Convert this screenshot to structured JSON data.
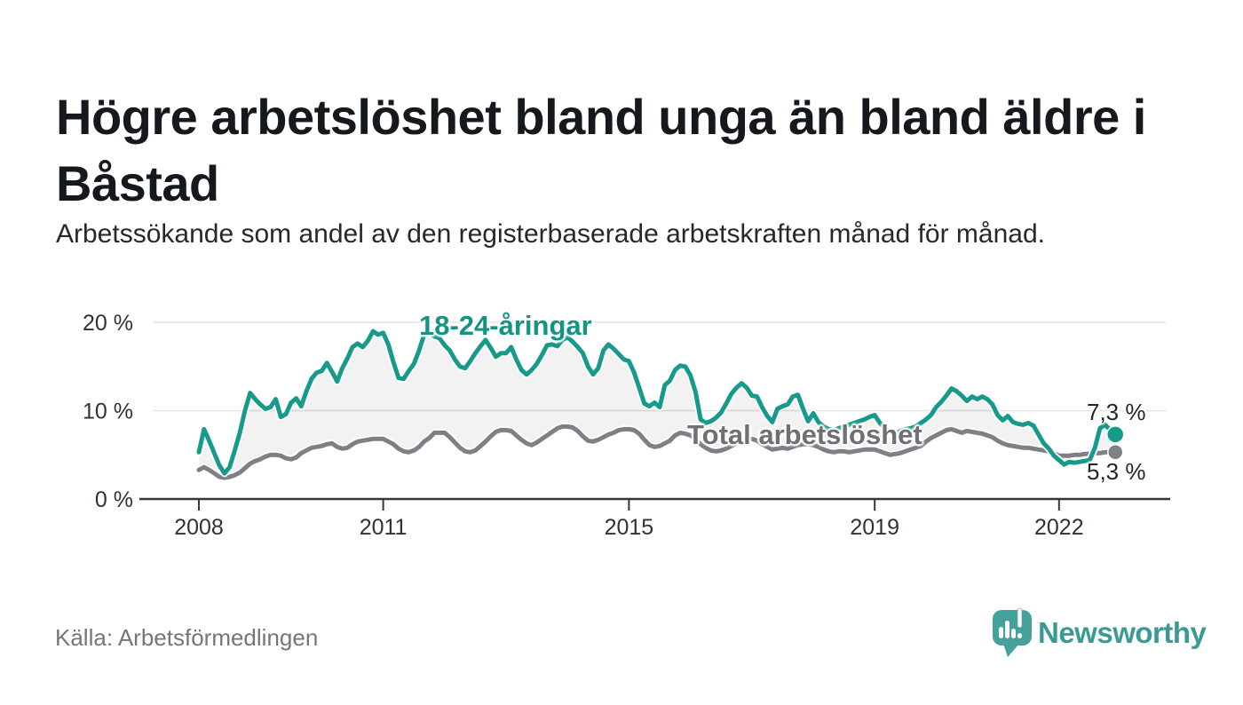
{
  "header": {
    "title": "Högre arbetslöshet bland unga än bland äldre i Båstad",
    "subtitle": "Arbetssökande som andel av den registerbaserade arbetskraften månad för månad."
  },
  "chart_data": {
    "type": "line",
    "title": "Högre arbetslöshet bland unga än bland äldre i Båstad",
    "x_start": {
      "year": 2008,
      "month": 1
    },
    "x_frequency": "monthly",
    "months": 180,
    "ylim": [
      0,
      21.5
    ],
    "grid": "horizontal",
    "legend": "inline-labels",
    "y_axis": {
      "ticks": [
        {
          "value": 0,
          "label": "0 %"
        },
        {
          "value": 10,
          "label": "10 %"
        },
        {
          "value": 20,
          "label": "20 %"
        }
      ]
    },
    "x_axis": {
      "ticks": [
        {
          "year": 2008,
          "label": "2008"
        },
        {
          "year": 2011,
          "label": "2011"
        },
        {
          "year": 2015,
          "label": "2015"
        },
        {
          "year": 2019,
          "label": "2019"
        },
        {
          "year": 2022,
          "label": "2022"
        }
      ]
    },
    "series": [
      {
        "name": "18-24-åringar",
        "color": "#179a89",
        "end_label": "7,3 %",
        "end_value": 7.3,
        "values": [
          5.3,
          7.9,
          6.6,
          5.2,
          3.8,
          2.9,
          3.6,
          5.5,
          7.5,
          10.0,
          12.0,
          11.3,
          10.7,
          10.2,
          10.4,
          11.3,
          9.3,
          9.6,
          10.9,
          11.4,
          10.5,
          12.2,
          13.6,
          14.3,
          14.5,
          15.4,
          14.4,
          13.3,
          14.8,
          15.9,
          17.2,
          17.6,
          17.2,
          17.9,
          19.0,
          18.6,
          18.8,
          17.5,
          15.5,
          13.7,
          13.6,
          14.5,
          15.3,
          16.8,
          18.6,
          18.8,
          18.4,
          18.2,
          17.4,
          16.8,
          15.8,
          15.0,
          14.8,
          15.6,
          16.5,
          17.3,
          18.0,
          17.1,
          16.1,
          16.5,
          16.5,
          17.2,
          15.8,
          14.6,
          14.1,
          14.6,
          15.3,
          16.3,
          17.4,
          17.5,
          17.3,
          18.0,
          18.3,
          17.8,
          17.2,
          16.5,
          15.0,
          14.1,
          14.8,
          16.8,
          17.5,
          17.0,
          16.4,
          15.8,
          15.6,
          14.3,
          12.6,
          10.8,
          10.5,
          10.9,
          10.4,
          12.9,
          13.4,
          14.6,
          15.1,
          15.0,
          14.0,
          12.1,
          9.0,
          8.6,
          8.8,
          9.2,
          9.8,
          10.8,
          11.9,
          12.6,
          13.1,
          12.6,
          11.7,
          11.6,
          10.4,
          9.4,
          8.7,
          10.2,
          10.5,
          10.7,
          11.6,
          11.8,
          10.2,
          8.8,
          9.7,
          8.7,
          8.2,
          7.9,
          7.8,
          8.0,
          8.2,
          8.4,
          8.6,
          8.8,
          9.0,
          9.3,
          9.5,
          8.6,
          8.0,
          7.6,
          7.4,
          7.7,
          7.9,
          8.0,
          8.2,
          8.6,
          9.0,
          9.5,
          10.4,
          11.0,
          11.7,
          12.5,
          12.2,
          11.7,
          11.1,
          11.6,
          11.3,
          11.6,
          11.3,
          10.7,
          9.5,
          8.9,
          9.4,
          8.7,
          8.5,
          8.4,
          8.6,
          8.3,
          7.3,
          6.3,
          5.7,
          4.9,
          4.4,
          3.9,
          4.2,
          4.1,
          4.2,
          4.3,
          4.4,
          5.8,
          8.0,
          8.4,
          7.8,
          7.3
        ]
      },
      {
        "name": "Total arbetslöshet",
        "color": "#7f7f86",
        "end_label": "5,3 %",
        "end_value": 5.3,
        "values": [
          3.3,
          3.6,
          3.3,
          2.9,
          2.5,
          2.4,
          2.5,
          2.7,
          3.0,
          3.5,
          4.0,
          4.3,
          4.5,
          4.8,
          5.0,
          5.0,
          4.9,
          4.6,
          4.5,
          4.7,
          5.2,
          5.5,
          5.8,
          5.9,
          6.0,
          6.2,
          6.3,
          5.9,
          5.7,
          5.8,
          6.2,
          6.5,
          6.6,
          6.7,
          6.8,
          6.8,
          6.8,
          6.5,
          6.2,
          5.7,
          5.4,
          5.3,
          5.5,
          5.9,
          6.5,
          6.9,
          7.5,
          7.5,
          7.5,
          7.0,
          6.4,
          5.8,
          5.4,
          5.3,
          5.5,
          6.0,
          6.5,
          7.1,
          7.6,
          7.8,
          7.8,
          7.7,
          7.2,
          6.7,
          6.3,
          6.1,
          6.4,
          6.8,
          7.2,
          7.6,
          8.0,
          8.2,
          8.2,
          8.1,
          7.7,
          7.1,
          6.6,
          6.5,
          6.7,
          7.0,
          7.3,
          7.5,
          7.8,
          7.9,
          7.9,
          7.8,
          7.4,
          6.7,
          6.1,
          5.9,
          6.0,
          6.3,
          6.6,
          7.2,
          7.5,
          7.4,
          7.2,
          6.8,
          6.2,
          5.8,
          5.5,
          5.4,
          5.5,
          5.7,
          6.0,
          6.3,
          6.6,
          6.8,
          6.8,
          6.6,
          6.2,
          5.9,
          5.6,
          5.7,
          5.8,
          5.7,
          5.9,
          6.1,
          6.2,
          6.2,
          6.1,
          5.9,
          5.6,
          5.4,
          5.3,
          5.4,
          5.4,
          5.3,
          5.4,
          5.5,
          5.6,
          5.6,
          5.6,
          5.4,
          5.2,
          5.0,
          5.1,
          5.2,
          5.4,
          5.6,
          5.8,
          6.0,
          6.5,
          6.9,
          7.2,
          7.5,
          7.8,
          7.9,
          7.7,
          7.5,
          7.7,
          7.6,
          7.5,
          7.4,
          7.2,
          7.0,
          6.6,
          6.3,
          6.1,
          6.0,
          5.9,
          5.8,
          5.8,
          5.7,
          5.6,
          5.5,
          5.4,
          5.2,
          4.9,
          4.9,
          4.9,
          5.0,
          5.0,
          5.1,
          5.1,
          5.2,
          5.2,
          5.3,
          5.3,
          5.3
        ]
      }
    ]
  },
  "footer": {
    "source": "Källa: Arbetsförmedlingen",
    "brand": "Newsworthy"
  },
  "colors": {
    "accent_teal": "#179a89",
    "teal_label": "#169482",
    "line_gray": "#7f7f86",
    "gray_label": "#6f6f74",
    "fill_between": "rgba(0,0,0,0.05)",
    "grid": "#e2e2e2",
    "axis_line": "#35383b",
    "tick_text": "#2f3237",
    "title_text": "#15181c",
    "muted_text": "#75757d",
    "logo_teal": "#45a19b",
    "white": "#ffffff"
  }
}
